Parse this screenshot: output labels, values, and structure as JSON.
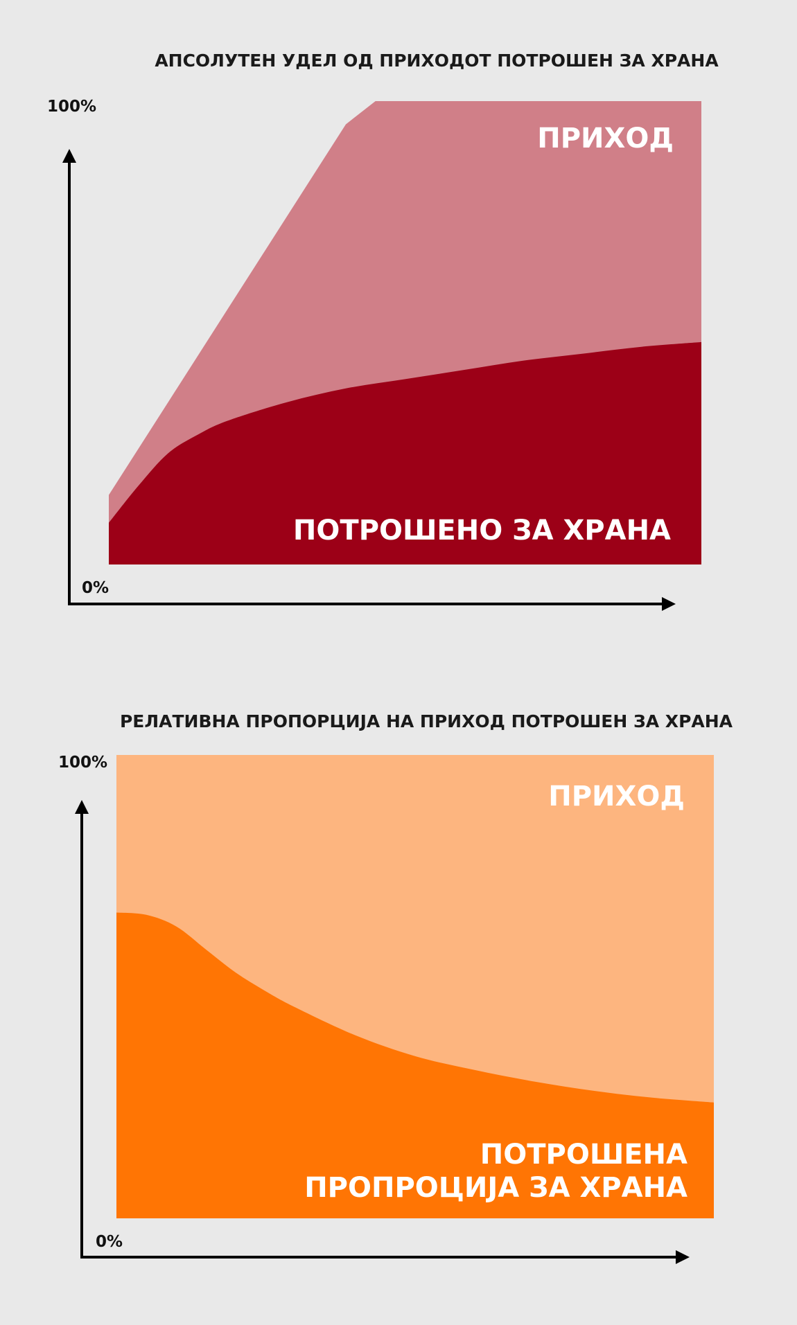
{
  "chart_data": [
    {
      "type": "area",
      "title": "АПСОЛУТЕН УДЕЛ ОД ПРИХОДОТ ПОТРОШЕН ЗА ХРАНА",
      "y_tick_labels": {
        "top": "100%",
        "bottom": "0%"
      },
      "ylim": [
        0,
        100
      ],
      "xlim": [
        0,
        100
      ],
      "colors": {
        "income": "#d07f88",
        "food": "#9c0017"
      },
      "series": [
        {
          "key": "income",
          "label": "ПРИХОД",
          "x": [
            0,
            10,
            20,
            30,
            40,
            45,
            60,
            80,
            100
          ],
          "y": [
            15,
            35,
            55,
            75,
            95,
            100,
            100,
            100,
            100
          ]
        },
        {
          "key": "food",
          "label": "ПОТРОШЕНО ЗА ХРАНА",
          "x": [
            0,
            5,
            10,
            15,
            20,
            30,
            40,
            50,
            60,
            70,
            80,
            90,
            100
          ],
          "y": [
            9,
            17,
            24,
            28,
            31,
            35,
            38,
            40,
            42,
            44,
            45.5,
            47,
            48
          ]
        }
      ]
    },
    {
      "type": "area",
      "title": "РЕЛАТИВНА ПРОПОРЦИЈА НА ПРИХОД ПОТРОШЕН ЗА ХРАНА",
      "y_tick_labels": {
        "top": "100%",
        "bottom": "0%"
      },
      "ylim": [
        0,
        100
      ],
      "xlim": [
        0,
        100
      ],
      "colors": {
        "income": "#fdb57f",
        "food": "#ff7504"
      },
      "series": [
        {
          "key": "income",
          "label": "ПРИХОД",
          "x": [
            0,
            100
          ],
          "y": [
            100,
            100
          ]
        },
        {
          "key": "food",
          "label_lines": [
            "ПОТРОШЕНА",
            "ПРОПРОЦИЈА ЗА ХРАНА"
          ],
          "x": [
            0,
            5,
            10,
            15,
            20,
            25,
            30,
            40,
            50,
            60,
            70,
            80,
            90,
            100
          ],
          "y": [
            66,
            65.5,
            63,
            58,
            53,
            49,
            45.5,
            39.5,
            35,
            32,
            29.5,
            27.5,
            26,
            25
          ]
        }
      ]
    }
  ]
}
